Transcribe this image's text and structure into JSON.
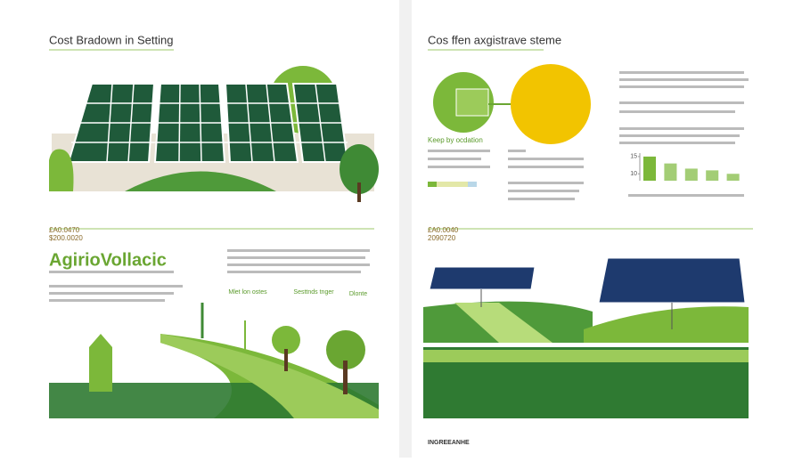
{
  "left_page": {
    "title": "Cost Bradown in Setting",
    "price_1": "£A0.0470",
    "price_2": "$200.0020",
    "heading": "AgirioVollacic",
    "labels": [
      "Mlet lon ostes",
      "Sesttnds tnger",
      "Dlonte"
    ]
  },
  "right_page": {
    "title": "Cos ffen axgistrave steme",
    "subheading": "Keep by ocdation",
    "price_1": "£A0.0040",
    "price_2": "2090720",
    "mini_chart": {
      "type": "bar",
      "values": [
        15,
        13,
        11.5,
        11,
        10
      ],
      "color": "#7cb83a",
      "ylim": [
        8,
        16
      ],
      "yticks": [
        10,
        15
      ]
    }
  },
  "footer": "INGREEANHE"
}
